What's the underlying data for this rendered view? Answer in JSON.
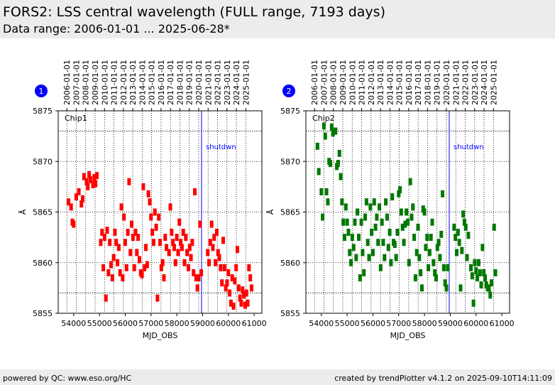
{
  "header": {
    "title": "FORS2: LSS central wavelength (FULL range, 7193 days)",
    "subtitle": "Data range: 2006-01-01 ... 2025-06-28*"
  },
  "footer": {
    "left": "powered by QC: www.eso.org/HC",
    "right": "created by trendPlotter v4.1.2 on 2025-09-10T14:11:09"
  },
  "colors": {
    "chip1": "#ff0000",
    "chip2": "#007700",
    "marker_badge": "#0000ff",
    "shutdown_line": "#0000ff",
    "header_bg": "#ececec"
  },
  "chart_data": [
    {
      "type": "scatter",
      "badge": "1",
      "panel_label": "Chip1",
      "xlabel": "MJD_OBS",
      "ylabel": "Å",
      "xlim": [
        53400,
        61300
      ],
      "ylim": [
        5855,
        5875
      ],
      "x_ticks": [
        54000,
        55000,
        56000,
        57000,
        58000,
        59000,
        60000,
        61000
      ],
      "y_ticks": [
        5855,
        5860,
        5865,
        5870,
        5875
      ],
      "top_date_ticks": [
        "2006-01-01",
        "2007-01-01",
        "2008-01-01",
        "2009-01-01",
        "2010-01-01",
        "2011-01-01",
        "2012-01-01",
        "2013-01-01",
        "2014-01-01",
        "2015-01-01",
        "2016-01-01",
        "2017-01-01",
        "2018-01-01",
        "2019-01-01",
        "2020-01-01",
        "2021-01-01",
        "2022-01-01",
        "2023-01-01",
        "2024-01-01",
        "2025-01-01"
      ],
      "top_date_mjd": [
        53736,
        54101,
        54466,
        54832,
        55197,
        55562,
        55927,
        56293,
        56658,
        57023,
        57388,
        57754,
        58119,
        58484,
        58849,
        59215,
        59580,
        59945,
        60310,
        60676
      ],
      "reference_lines": [
        5873,
        5857
      ],
      "annotation": {
        "text": "shutdwn",
        "mjd": 58960
      },
      "grid": true,
      "points": [
        [
          53800,
          5866
        ],
        [
          53900,
          5865.5
        ],
        [
          53950,
          5864
        ],
        [
          54000,
          5863.8
        ],
        [
          54100,
          5866.5
        ],
        [
          54200,
          5867
        ],
        [
          54300,
          5865.8
        ],
        [
          54350,
          5866.3
        ],
        [
          54400,
          5868.5
        ],
        [
          54500,
          5868
        ],
        [
          54550,
          5867.5
        ],
        [
          54600,
          5868.7
        ],
        [
          54650,
          5868.2
        ],
        [
          54750,
          5867.7
        ],
        [
          54800,
          5868.4
        ],
        [
          54850,
          5867.8
        ],
        [
          54900,
          5868.6
        ],
        [
          55050,
          5862
        ],
        [
          55100,
          5863
        ],
        [
          55150,
          5859.5
        ],
        [
          55200,
          5862.5
        ],
        [
          55250,
          5856.5
        ],
        [
          55300,
          5863.2
        ],
        [
          55350,
          5859
        ],
        [
          55400,
          5862
        ],
        [
          55450,
          5859.8
        ],
        [
          55500,
          5858.5
        ],
        [
          55550,
          5860.5
        ],
        [
          55600,
          5863
        ],
        [
          55650,
          5862
        ],
        [
          55700,
          5860
        ],
        [
          55750,
          5861.5
        ],
        [
          55800,
          5859
        ],
        [
          55850,
          5865.5
        ],
        [
          55900,
          5858.5
        ],
        [
          55950,
          5864.5
        ],
        [
          56000,
          5862
        ],
        [
          56050,
          5859.5
        ],
        [
          56100,
          5863
        ],
        [
          56150,
          5868
        ],
        [
          56200,
          5861
        ],
        [
          56250,
          5863.8
        ],
        [
          56300,
          5862.5
        ],
        [
          56350,
          5859.5
        ],
        [
          56400,
          5863
        ],
        [
          56450,
          5861
        ],
        [
          56500,
          5862.5
        ],
        [
          56550,
          5860.3
        ],
        [
          56600,
          5859
        ],
        [
          56650,
          5858.8
        ],
        [
          56700,
          5867.5
        ],
        [
          56750,
          5859.5
        ],
        [
          56800,
          5861.5
        ],
        [
          56850,
          5859.8
        ],
        [
          56900,
          5866.8
        ],
        [
          56950,
          5866
        ],
        [
          57000,
          5864.5
        ],
        [
          57050,
          5863
        ],
        [
          57100,
          5862
        ],
        [
          57150,
          5865
        ],
        [
          57200,
          5863.5
        ],
        [
          57250,
          5856.5
        ],
        [
          57300,
          5864.5
        ],
        [
          57350,
          5862
        ],
        [
          57400,
          5859.5
        ],
        [
          57450,
          5860
        ],
        [
          57500,
          5858.5
        ],
        [
          57550,
          5862.5
        ],
        [
          57600,
          5861.5
        ],
        [
          57700,
          5861
        ],
        [
          57750,
          5865.5
        ],
        [
          57800,
          5863
        ],
        [
          57850,
          5862
        ],
        [
          57900,
          5861.5
        ],
        [
          57950,
          5860
        ],
        [
          58000,
          5862.5
        ],
        [
          58050,
          5861
        ],
        [
          58100,
          5864
        ],
        [
          58150,
          5862
        ],
        [
          58200,
          5861.5
        ],
        [
          58250,
          5863
        ],
        [
          58300,
          5860
        ],
        [
          58350,
          5862.5
        ],
        [
          58400,
          5861
        ],
        [
          58450,
          5859.5
        ],
        [
          58500,
          5861.5
        ],
        [
          58550,
          5860.5
        ],
        [
          58600,
          5862
        ],
        [
          58650,
          5859
        ],
        [
          58700,
          5867
        ],
        [
          58750,
          5858.5
        ],
        [
          58800,
          5857.5
        ],
        [
          58850,
          5858.5
        ],
        [
          58900,
          5863.8
        ],
        [
          58950,
          5859
        ],
        [
          59200,
          5861
        ],
        [
          59250,
          5860
        ],
        [
          59300,
          5862
        ],
        [
          59350,
          5863.8
        ],
        [
          59400,
          5861.5
        ],
        [
          59450,
          5862.5
        ],
        [
          59500,
          5860
        ],
        [
          59550,
          5863
        ],
        [
          59600,
          5861
        ],
        [
          59650,
          5860.5
        ],
        [
          59700,
          5859.5
        ],
        [
          59750,
          5858
        ],
        [
          59800,
          5862.2
        ],
        [
          59850,
          5859.5
        ],
        [
          59900,
          5857.5
        ],
        [
          59950,
          5858
        ],
        [
          60000,
          5859
        ],
        [
          60050,
          5857
        ],
        [
          60100,
          5856
        ],
        [
          60150,
          5858.5
        ],
        [
          60200,
          5855.7
        ],
        [
          60250,
          5858.2
        ],
        [
          60300,
          5859.5
        ],
        [
          60350,
          5861.3
        ],
        [
          60400,
          5857.5
        ],
        [
          60450,
          5856.5
        ],
        [
          60500,
          5856
        ],
        [
          60550,
          5857.3
        ],
        [
          60600,
          5856.8
        ],
        [
          60650,
          5855.8
        ],
        [
          60700,
          5857
        ],
        [
          60750,
          5856
        ],
        [
          60800,
          5859.5
        ],
        [
          60850,
          5858.5
        ],
        [
          60900,
          5857.5
        ]
      ]
    },
    {
      "type": "scatter",
      "badge": "2",
      "panel_label": "Chip2",
      "xlabel": "MJD_OBS",
      "ylabel": "Å",
      "xlim": [
        53400,
        61300
      ],
      "ylim": [
        5855,
        5875
      ],
      "x_ticks": [
        54000,
        55000,
        56000,
        57000,
        58000,
        59000,
        60000,
        61000
      ],
      "y_ticks": [
        5855,
        5860,
        5865,
        5870,
        5875
      ],
      "top_date_ticks": [
        "2006-01-01",
        "2007-01-01",
        "2008-01-01",
        "2009-01-01",
        "2010-01-01",
        "2011-01-01",
        "2012-01-01",
        "2013-01-01",
        "2014-01-01",
        "2015-01-01",
        "2016-01-01",
        "2017-01-01",
        "2018-01-01",
        "2019-01-01",
        "2020-01-01",
        "2021-01-01",
        "2022-01-01",
        "2023-01-01",
        "2024-01-01",
        "2025-01-01"
      ],
      "top_date_mjd": [
        53736,
        54101,
        54466,
        54832,
        55197,
        55562,
        55927,
        56293,
        56658,
        57023,
        57388,
        57754,
        58119,
        58484,
        58849,
        59215,
        59580,
        59945,
        60310,
        60676
      ],
      "reference_lines": [
        5873,
        5857
      ],
      "annotation": {
        "text": "shutdwn",
        "mjd": 58960
      },
      "grid": true,
      "points": [
        [
          53850,
          5871.5
        ],
        [
          53900,
          5869
        ],
        [
          54000,
          5867
        ],
        [
          54050,
          5864.5
        ],
        [
          54100,
          5873.5
        ],
        [
          54150,
          5872.5
        ],
        [
          54200,
          5867
        ],
        [
          54250,
          5866
        ],
        [
          54300,
          5870
        ],
        [
          54350,
          5869.8
        ],
        [
          54400,
          5873.4
        ],
        [
          54450,
          5872.8
        ],
        [
          54550,
          5873
        ],
        [
          54600,
          5869.5
        ],
        [
          54650,
          5869.8
        ],
        [
          54700,
          5870.8
        ],
        [
          54750,
          5868.5
        ],
        [
          54800,
          5866
        ],
        [
          54850,
          5864
        ],
        [
          54900,
          5862.5
        ],
        [
          54950,
          5865.5
        ],
        [
          55000,
          5864
        ],
        [
          55050,
          5863
        ],
        [
          55100,
          5861
        ],
        [
          55150,
          5860
        ],
        [
          55200,
          5862.5
        ],
        [
          55250,
          5861.5
        ],
        [
          55300,
          5864
        ],
        [
          55350,
          5860.5
        ],
        [
          55400,
          5865
        ],
        [
          55450,
          5862.5
        ],
        [
          55500,
          5858.5
        ],
        [
          55550,
          5864
        ],
        [
          55600,
          5861
        ],
        [
          55650,
          5859
        ],
        [
          55700,
          5864.5
        ],
        [
          55750,
          5866
        ],
        [
          55800,
          5862
        ],
        [
          55850,
          5860.5
        ],
        [
          55900,
          5865.5
        ],
        [
          55950,
          5863
        ],
        [
          56000,
          5861
        ],
        [
          56050,
          5866
        ],
        [
          56100,
          5863.5
        ],
        [
          56150,
          5864.5
        ],
        [
          56200,
          5862
        ],
        [
          56250,
          5865.5
        ],
        [
          56300,
          5859.5
        ],
        [
          56350,
          5864
        ],
        [
          56400,
          5862
        ],
        [
          56450,
          5860.5
        ],
        [
          56500,
          5866
        ],
        [
          56550,
          5864.5
        ],
        [
          56600,
          5861.5
        ],
        [
          56650,
          5863
        ],
        [
          56700,
          5860
        ],
        [
          56750,
          5866.5
        ],
        [
          56800,
          5862
        ],
        [
          56850,
          5861.8
        ],
        [
          56900,
          5860.5
        ],
        [
          56950,
          5863
        ],
        [
          57000,
          5866.8
        ],
        [
          57050,
          5867.2
        ],
        [
          57100,
          5865
        ],
        [
          57150,
          5863.5
        ],
        [
          57200,
          5862
        ],
        [
          57250,
          5863.8
        ],
        [
          57300,
          5865
        ],
        [
          57350,
          5864
        ],
        [
          57400,
          5860
        ],
        [
          57450,
          5868
        ],
        [
          57500,
          5864.5
        ],
        [
          57550,
          5865.5
        ],
        [
          57600,
          5862.5
        ],
        [
          57650,
          5858.5
        ],
        [
          57700,
          5861
        ],
        [
          57750,
          5863.5
        ],
        [
          57800,
          5860.5
        ],
        [
          57850,
          5859
        ],
        [
          57900,
          5857.5
        ],
        [
          57950,
          5865.3
        ],
        [
          58000,
          5865
        ],
        [
          58050,
          5861.5
        ],
        [
          58100,
          5862.5
        ],
        [
          58150,
          5859.5
        ],
        [
          58200,
          5861
        ],
        [
          58250,
          5862.5
        ],
        [
          58300,
          5864
        ],
        [
          58350,
          5860
        ],
        [
          58400,
          5859
        ],
        [
          58450,
          5858.5
        ],
        [
          58500,
          5861.5
        ],
        [
          58550,
          5862
        ],
        [
          58600,
          5860.5
        ],
        [
          58650,
          5862.8
        ],
        [
          58700,
          5866.8
        ],
        [
          58750,
          5859.5
        ],
        [
          58800,
          5858
        ],
        [
          58850,
          5857.5
        ],
        [
          58900,
          5859.5
        ],
        [
          59150,
          5863.5
        ],
        [
          59200,
          5862.5
        ],
        [
          59250,
          5861
        ],
        [
          59300,
          5863
        ],
        [
          59350,
          5862
        ],
        [
          59400,
          5857.5
        ],
        [
          59450,
          5861.2
        ],
        [
          59500,
          5864.8
        ],
        [
          59550,
          5864
        ],
        [
          59600,
          5863.5
        ],
        [
          59650,
          5860.5
        ],
        [
          59700,
          5862.7
        ],
        [
          59800,
          5859.5
        ],
        [
          59850,
          5858.7
        ],
        [
          59900,
          5856
        ],
        [
          59950,
          5860
        ],
        [
          60000,
          5859.2
        ],
        [
          60050,
          5858.5
        ],
        [
          60100,
          5860
        ],
        [
          60150,
          5859
        ],
        [
          60200,
          5857.8
        ],
        [
          60250,
          5861.5
        ],
        [
          60300,
          5859
        ],
        [
          60350,
          5858.5
        ],
        [
          60400,
          5857.8
        ],
        [
          60450,
          5857.5
        ],
        [
          60500,
          5857.5
        ],
        [
          60550,
          5856.8
        ],
        [
          60600,
          5858
        ],
        [
          60700,
          5863.5
        ],
        [
          60750,
          5859
        ]
      ]
    }
  ]
}
